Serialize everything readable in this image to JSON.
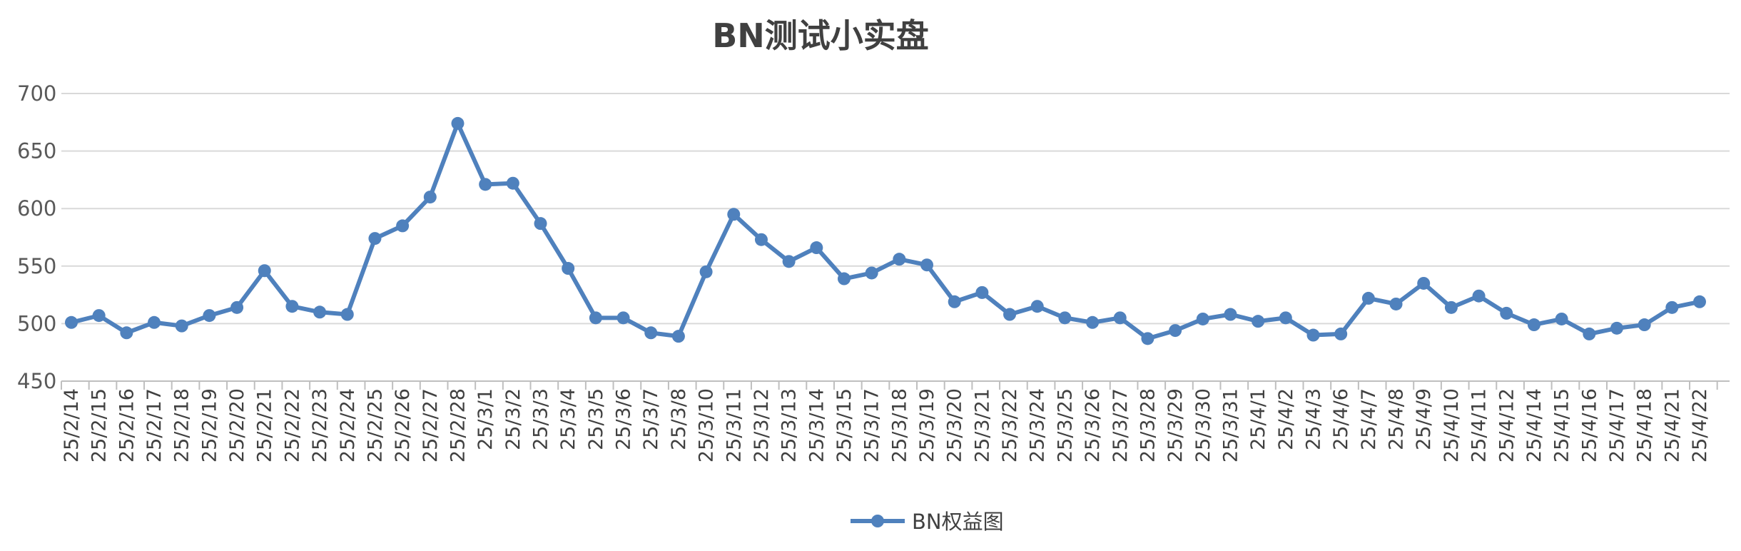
{
  "chart_data": {
    "type": "line",
    "title": "BN测试小实盘",
    "xlabel": "",
    "ylabel": "",
    "ylim": [
      450,
      700
    ],
    "yticks": [
      450,
      500,
      550,
      600,
      650,
      700
    ],
    "grid": true,
    "legend_position": "bottom",
    "categories": [
      "25/2/14",
      "25/2/15",
      "25/2/16",
      "25/2/17",
      "25/2/18",
      "25/2/19",
      "25/2/20",
      "25/2/21",
      "25/2/22",
      "25/2/23",
      "25/2/24",
      "25/2/25",
      "25/2/26",
      "25/2/27",
      "25/2/28",
      "25/3/1",
      "25/3/2",
      "25/3/3",
      "25/3/4",
      "25/3/5",
      "25/3/6",
      "25/3/7",
      "25/3/8",
      "25/3/10",
      "25/3/11",
      "25/3/12",
      "25/3/13",
      "25/3/14",
      "25/3/15",
      "25/3/17",
      "25/3/18",
      "25/3/19",
      "25/3/20",
      "25/3/21",
      "25/3/22",
      "25/3/24",
      "25/3/25",
      "25/3/26",
      "25/3/27",
      "25/3/28",
      "25/3/29",
      "25/3/30",
      "25/3/31",
      "25/4/1",
      "25/4/2",
      "25/4/3",
      "25/4/6",
      "25/4/7",
      "25/4/8",
      "25/4/9",
      "25/4/10",
      "25/4/11",
      "25/4/12",
      "25/4/14",
      "25/4/15",
      "25/4/16",
      "25/4/17",
      "25/4/18",
      "25/4/21",
      "25/4/22"
    ],
    "series": [
      {
        "name": "BN权益图",
        "color": "#4f81bd",
        "values": [
          501,
          507,
          492,
          501,
          498,
          507,
          514,
          546,
          515,
          510,
          508,
          574,
          585,
          610,
          674,
          621,
          622,
          587,
          548,
          505,
          505,
          492,
          489,
          545,
          595,
          573,
          554,
          566,
          539,
          544,
          556,
          551,
          519,
          527,
          508,
          515,
          505,
          501,
          505,
          487,
          494,
          504,
          508,
          502,
          505,
          490,
          491,
          522,
          517,
          535,
          514,
          524,
          509,
          499,
          504,
          491,
          496,
          499,
          514,
          519
        ]
      }
    ]
  }
}
